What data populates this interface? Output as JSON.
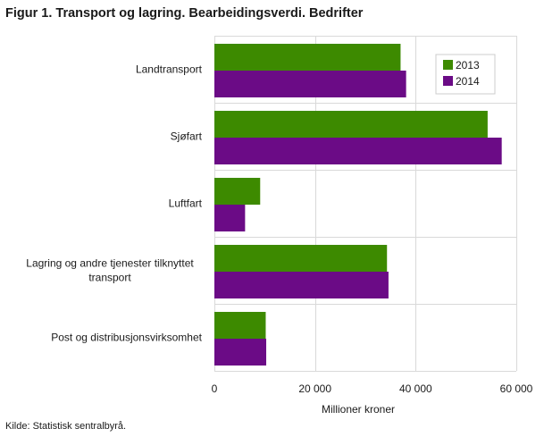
{
  "title": "Figur 1. Transport og lagring. Bearbeidingsverdi. Bedrifter",
  "source": "Kilde: Statistisk sentralbyrå.",
  "colors": {
    "2013": "#3d8a00",
    "2014": "#6b0b86",
    "grid": "#d9d9d9"
  },
  "chart_data": {
    "type": "bar",
    "orientation": "horizontal",
    "title": "Figur 1. Transport og lagring. Bearbeidingsverdi. Bedrifter",
    "xlabel": "Millioner  kroner",
    "ylabel": "",
    "xlim": [
      0,
      60000
    ],
    "xticks": [
      0,
      20000,
      40000,
      60000
    ],
    "xtick_labels": [
      "0",
      "20 000",
      "40 000",
      "60 000"
    ],
    "grid": true,
    "legend_position": "top-right",
    "categories": [
      [
        "Landtransport"
      ],
      [
        "Sjøfart"
      ],
      [
        "Luftfart"
      ],
      [
        "Lagring og andre tjenester tilknyttet",
        "transport"
      ],
      [
        "Post og distribusjonsvirksomhet"
      ]
    ],
    "series": [
      {
        "name": "2013",
        "color": "#3d8a00",
        "values": [
          37000,
          54300,
          9100,
          34300,
          10200
        ]
      },
      {
        "name": "2014",
        "color": "#6b0b86",
        "values": [
          38100,
          57100,
          6100,
          34600,
          10300
        ]
      }
    ]
  }
}
